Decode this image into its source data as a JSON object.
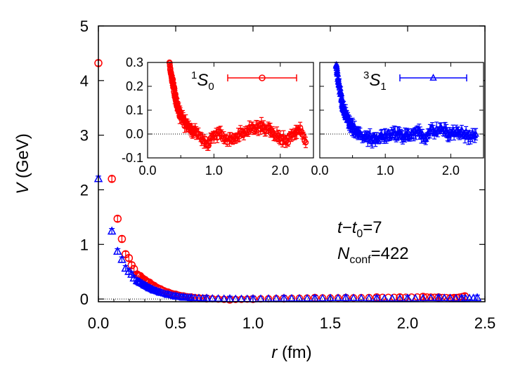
{
  "chart_data": [
    {
      "type": "scatter",
      "xlabel": "r (fm)",
      "ylabel": "V (GeV)",
      "xlim": [
        0.0,
        2.5
      ],
      "ylim": [
        -0.05,
        5.0
      ],
      "xticks": [
        "0.0",
        "0.5",
        "1.0",
        "1.5",
        "2.0",
        "2.5"
      ],
      "yticks": [
        "0",
        "1",
        "2",
        "3",
        "4",
        "5"
      ],
      "annotations": [
        {
          "prefix": "t",
          "mid": "−t",
          "sub": "0",
          "suffix": "=7"
        },
        {
          "prefix": "N",
          "sub": "conf",
          "suffix": "=422"
        }
      ],
      "series": [
        {
          "name": "1S0",
          "color": "#ff0000",
          "marker": "circle",
          "points": [
            [
              0.0,
              4.32
            ],
            [
              0.087,
              2.2
            ],
            [
              0.124,
              1.47
            ],
            [
              0.152,
              1.1
            ],
            [
              0.176,
              0.82
            ],
            [
              0.197,
              0.75
            ],
            [
              0.215,
              0.62
            ],
            [
              0.23,
              0.55
            ],
            [
              0.25,
              0.45
            ],
            [
              0.27,
              0.42
            ],
            [
              0.3,
              0.35
            ],
            [
              0.33,
              0.3
            ],
            [
              0.36,
              0.24
            ],
            [
              0.4,
              0.18
            ],
            [
              0.45,
              0.12
            ],
            [
              0.5,
              0.08
            ],
            [
              0.55,
              0.05
            ],
            [
              0.6,
              0.03
            ],
            [
              0.7,
              0.01
            ],
            [
              0.85,
              -0.01
            ],
            [
              1.0,
              0.0
            ],
            [
              1.2,
              0.01
            ],
            [
              1.4,
              0.02
            ],
            [
              1.6,
              0.02
            ],
            [
              1.8,
              0.03
            ],
            [
              1.95,
              0.03
            ],
            [
              2.1,
              0.04
            ],
            [
              2.2,
              0.03
            ],
            [
              2.3,
              0.02
            ],
            [
              2.37,
              0.05
            ]
          ]
        },
        {
          "name": "3S1",
          "color": "#0000ff",
          "marker": "triangle",
          "points": [
            [
              0.0,
              2.2
            ],
            [
              0.087,
              1.24
            ],
            [
              0.124,
              0.87
            ],
            [
              0.152,
              0.72
            ],
            [
              0.176,
              0.56
            ],
            [
              0.197,
              0.5
            ],
            [
              0.215,
              0.45
            ],
            [
              0.23,
              0.38
            ],
            [
              0.25,
              0.33
            ],
            [
              0.27,
              0.3
            ],
            [
              0.3,
              0.25
            ],
            [
              0.33,
              0.2
            ],
            [
              0.36,
              0.16
            ],
            [
              0.4,
              0.12
            ],
            [
              0.45,
              0.08
            ],
            [
              0.5,
              0.05
            ],
            [
              0.55,
              0.03
            ],
            [
              0.6,
              0.02
            ],
            [
              0.7,
              0.01
            ],
            [
              0.85,
              0.0
            ],
            [
              1.0,
              0.0
            ],
            [
              1.2,
              0.01
            ],
            [
              1.4,
              0.01
            ],
            [
              1.6,
              0.02
            ],
            [
              1.8,
              0.01
            ],
            [
              2.0,
              0.01
            ],
            [
              2.2,
              0.02
            ],
            [
              2.35,
              0.01
            ],
            [
              2.45,
              0.02
            ]
          ]
        }
      ]
    },
    {
      "type": "scatter",
      "xlim": [
        0.0,
        2.5
      ],
      "ylim": [
        -0.1,
        0.3
      ],
      "xticks": [
        "0.0",
        "1.0",
        "2.0"
      ],
      "yticks": [
        "0.3",
        "0.2",
        "0.1",
        "0.0",
        "-0.1"
      ],
      "legend": {
        "sup": "1",
        "main": "S",
        "sub": "0"
      },
      "series": [
        {
          "name": "1S0",
          "color": "#ff0000",
          "marker": "circle",
          "points": [
            [
              0.33,
              0.3
            ],
            [
              0.35,
              0.26
            ],
            [
              0.37,
              0.23
            ],
            [
              0.39,
              0.2
            ],
            [
              0.41,
              0.17
            ],
            [
              0.43,
              0.14
            ],
            [
              0.45,
              0.12
            ],
            [
              0.48,
              0.09
            ],
            [
              0.51,
              0.07
            ],
            [
              0.55,
              0.05
            ],
            [
              0.6,
              0.03
            ],
            [
              0.65,
              0.02
            ],
            [
              0.7,
              0.01
            ],
            [
              0.8,
              0.0
            ],
            [
              0.9,
              -0.05
            ],
            [
              1.0,
              -0.01
            ],
            [
              1.1,
              0.0
            ],
            [
              1.2,
              -0.02
            ],
            [
              1.3,
              -0.01
            ],
            [
              1.4,
              0.0
            ],
            [
              1.5,
              0.01
            ],
            [
              1.6,
              0.02
            ],
            [
              1.7,
              0.03
            ],
            [
              1.8,
              0.02
            ],
            [
              1.9,
              0.01
            ],
            [
              2.0,
              -0.02
            ],
            [
              2.1,
              -0.03
            ],
            [
              2.2,
              0.0
            ],
            [
              2.3,
              0.02
            ],
            [
              2.4,
              -0.04
            ]
          ]
        }
      ]
    },
    {
      "type": "scatter",
      "xlim": [
        0.0,
        2.5
      ],
      "ylim": [
        -0.1,
        0.3
      ],
      "xticks": [
        "0.0",
        "1.0",
        "2.0"
      ],
      "legend": {
        "sup": "3",
        "main": "S",
        "sub": "1"
      },
      "series": [
        {
          "name": "3S1",
          "color": "#0000ff",
          "marker": "triangle",
          "points": [
            [
              0.25,
              0.3
            ],
            [
              0.27,
              0.25
            ],
            [
              0.29,
              0.21
            ],
            [
              0.31,
              0.18
            ],
            [
              0.33,
              0.15
            ],
            [
              0.35,
              0.12
            ],
            [
              0.37,
              0.1
            ],
            [
              0.4,
              0.08
            ],
            [
              0.43,
              0.06
            ],
            [
              0.46,
              0.04
            ],
            [
              0.5,
              0.03
            ],
            [
              0.55,
              0.01
            ],
            [
              0.6,
              0.0
            ],
            [
              0.7,
              -0.01
            ],
            [
              0.8,
              -0.02
            ],
            [
              0.9,
              -0.02
            ],
            [
              1.0,
              -0.01
            ],
            [
              1.1,
              0.0
            ],
            [
              1.2,
              0.0
            ],
            [
              1.3,
              -0.01
            ],
            [
              1.4,
              0.0
            ],
            [
              1.5,
              0.01
            ],
            [
              1.6,
              -0.02
            ],
            [
              1.7,
              0.01
            ],
            [
              1.8,
              0.02
            ],
            [
              1.9,
              0.01
            ],
            [
              2.0,
              0.0
            ],
            [
              2.1,
              0.01
            ],
            [
              2.2,
              0.0
            ],
            [
              2.3,
              -0.01
            ],
            [
              2.4,
              0.0
            ]
          ]
        }
      ]
    }
  ]
}
